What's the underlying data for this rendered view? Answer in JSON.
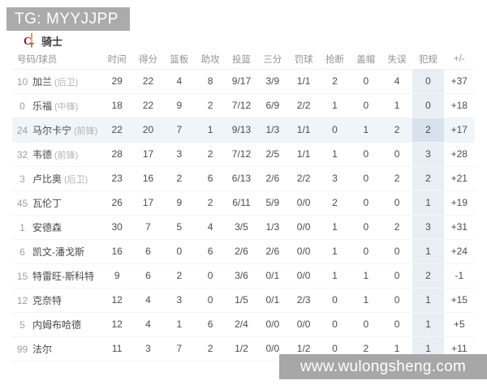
{
  "badge": {
    "text": "TG: MYYJJPP"
  },
  "team": {
    "name": "骑士",
    "logo_icon": "cavaliers-sword-c-logo"
  },
  "watermark": {
    "text": "www.wulongsheng.com"
  },
  "colors": {
    "badge_bg": "#ababab",
    "watermark_bg": "#a7a7a7",
    "fouls_column_bg": "#e9eef4",
    "highlight_row_bg": "#f0f5f9",
    "highlight_fouls_bg": "#d8e2ec",
    "logo_wine": "#8a1538",
    "logo_gold": "#c99a3c"
  },
  "table": {
    "columns": [
      "号码/球员",
      "时间",
      "得分",
      "篮板",
      "助攻",
      "投篮",
      "三分",
      "罚球",
      "抢断",
      "盖帽",
      "失误",
      "犯规",
      "+/-"
    ],
    "fouls_column_index": 11,
    "highlighted_row_index": 2,
    "rows": [
      {
        "number": "10",
        "name": "加兰",
        "position": "(后卫)",
        "stats": [
          "29",
          "22",
          "4",
          "8",
          "9/17",
          "3/9",
          "1/1",
          "2",
          "0",
          "4",
          "0",
          "+37"
        ]
      },
      {
        "number": "0",
        "name": "乐福",
        "position": "(中锋)",
        "stats": [
          "18",
          "22",
          "9",
          "2",
          "7/12",
          "6/9",
          "2/2",
          "1",
          "0",
          "1",
          "0",
          "+18"
        ]
      },
      {
        "number": "24",
        "name": "马尔卡宁",
        "position": "(前锋)",
        "stats": [
          "22",
          "20",
          "7",
          "1",
          "9/13",
          "1/3",
          "1/1",
          "0",
          "1",
          "2",
          "2",
          "+17"
        ]
      },
      {
        "number": "32",
        "name": "韦德",
        "position": "(前锋)",
        "stats": [
          "28",
          "17",
          "3",
          "2",
          "7/12",
          "2/5",
          "1/1",
          "1",
          "0",
          "0",
          "3",
          "+28"
        ]
      },
      {
        "number": "3",
        "name": "卢比奥",
        "position": "(后卫)",
        "stats": [
          "23",
          "16",
          "2",
          "6",
          "6/13",
          "2/6",
          "2/2",
          "3",
          "0",
          "2",
          "2",
          "+21"
        ]
      },
      {
        "number": "45",
        "name": "瓦伦丁",
        "position": "",
        "stats": [
          "26",
          "17",
          "9",
          "2",
          "6/11",
          "5/9",
          "0/0",
          "2",
          "0",
          "0",
          "1",
          "+19"
        ]
      },
      {
        "number": "1",
        "name": "安德森",
        "position": "",
        "stats": [
          "30",
          "7",
          "5",
          "4",
          "3/5",
          "1/3",
          "0/0",
          "1",
          "0",
          "2",
          "3",
          "+31"
        ]
      },
      {
        "number": "6",
        "name": "凯文-潘戈斯",
        "position": "",
        "stats": [
          "16",
          "6",
          "0",
          "6",
          "2/6",
          "2/6",
          "0/0",
          "1",
          "0",
          "0",
          "1",
          "+24"
        ]
      },
      {
        "number": "15",
        "name": "特雷旺-斯科特",
        "position": "",
        "stats": [
          "9",
          "6",
          "2",
          "0",
          "3/6",
          "0/1",
          "0/0",
          "1",
          "1",
          "0",
          "2",
          "-1"
        ]
      },
      {
        "number": "12",
        "name": "克奈特",
        "position": "",
        "stats": [
          "12",
          "4",
          "3",
          "0",
          "1/5",
          "0/1",
          "2/3",
          "0",
          "1",
          "0",
          "1",
          "+15"
        ]
      },
      {
        "number": "5",
        "name": "内姆布哈德",
        "position": "",
        "stats": [
          "12",
          "4",
          "1",
          "6",
          "2/4",
          "0/0",
          "0/0",
          "0",
          "0",
          "0",
          "1",
          "+5"
        ]
      },
      {
        "number": "99",
        "name": "法尔",
        "position": "",
        "stats": [
          "11",
          "3",
          "7",
          "2",
          "1/2",
          "0/0",
          "1/2",
          "0",
          "2",
          "1",
          "1",
          "+11"
        ]
      }
    ]
  }
}
